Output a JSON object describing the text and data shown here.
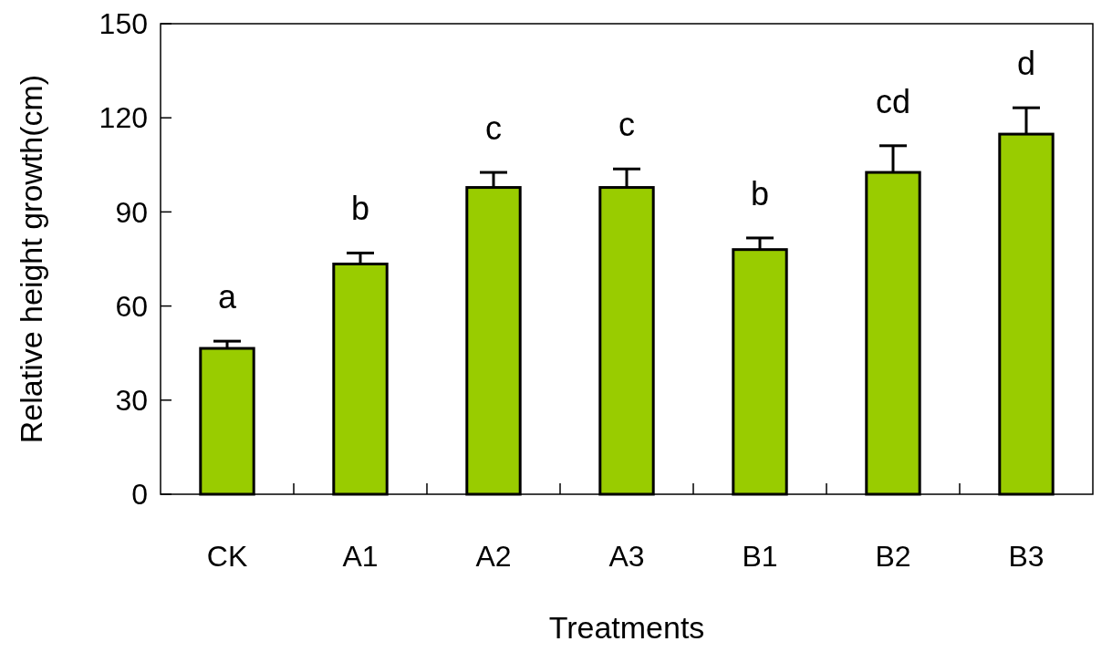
{
  "chart_data": {
    "type": "bar",
    "xlabel": "Treatments",
    "ylabel": "Relative height growth(cm)",
    "categories": [
      "CK",
      "A1",
      "A2",
      "A3",
      "B1",
      "B2",
      "B3"
    ],
    "values": [
      46.5,
      73.4,
      97.8,
      97.8,
      78.0,
      102.6,
      114.8
    ],
    "errors": [
      2.3,
      3.5,
      4.8,
      5.9,
      3.7,
      8.5,
      8.4
    ],
    "color": "#99cc00",
    "ylim": [
      0,
      150
    ],
    "yticks": [
      0,
      30,
      60,
      90,
      120,
      150
    ],
    "grid": false,
    "annotations": [
      "a",
      "b",
      "c",
      "c",
      "b",
      "cd",
      "d"
    ]
  }
}
